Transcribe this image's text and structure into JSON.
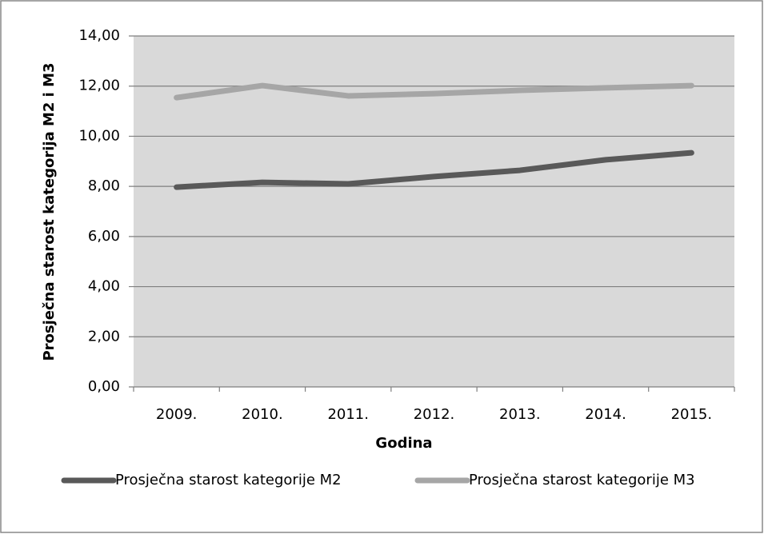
{
  "chart_data": {
    "type": "line",
    "categories": [
      "2009.",
      "2010.",
      "2011.",
      "2012.",
      "2013.",
      "2014.",
      "2015."
    ],
    "series": [
      {
        "name": "Prosječna starost kategorije M2",
        "color": "#595959",
        "values": [
          7.97,
          8.16,
          8.1,
          8.39,
          8.64,
          9.06,
          9.34
        ]
      },
      {
        "name": "Prosječna starost kategorije M3",
        "color": "#a6a6a6",
        "values": [
          11.54,
          12.02,
          11.61,
          11.7,
          11.83,
          11.93,
          12.02
        ]
      }
    ],
    "xlabel": "Godina",
    "ylabel": "Prosječna starost kategorija M2 i M3",
    "ylim": [
      0,
      14
    ],
    "yticks": [
      {
        "value": 0,
        "label": "0,00"
      },
      {
        "value": 2,
        "label": "2,00"
      },
      {
        "value": 4,
        "label": "4,00"
      },
      {
        "value": 6,
        "label": "6,00"
      },
      {
        "value": 8,
        "label": "8,00"
      },
      {
        "value": 10,
        "label": "10,00"
      },
      {
        "value": 12,
        "label": "12,00"
      },
      {
        "value": 14,
        "label": "14,00"
      }
    ],
    "grid": true,
    "legend": "bottom"
  }
}
